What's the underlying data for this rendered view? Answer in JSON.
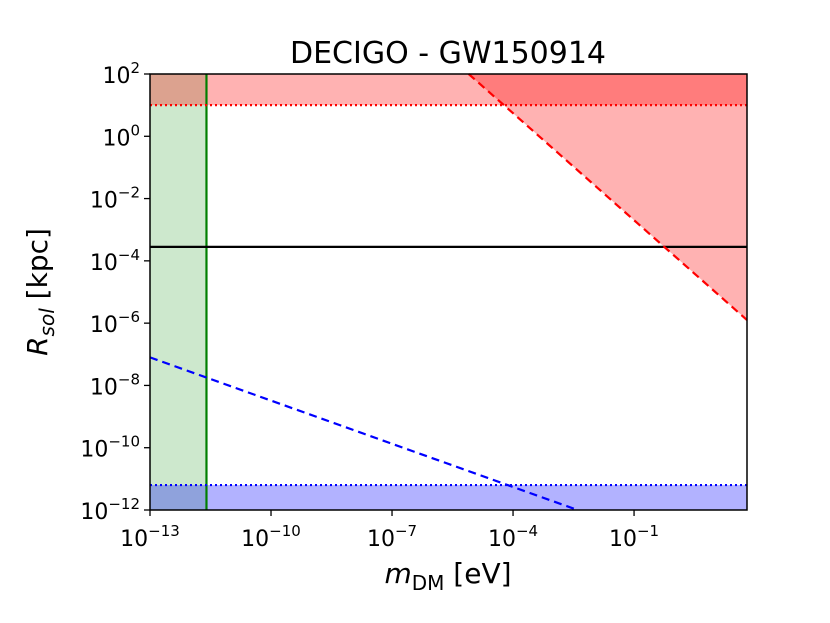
{
  "chart_data": {
    "type": "line",
    "title": "DECIGO - GW150914",
    "xlabel": {
      "main": "m",
      "sub": "DM",
      "unit": " [eV]"
    },
    "ylabel": {
      "main": "R",
      "sub": "sol",
      "unit": " [kpc]"
    },
    "xscale": "log",
    "yscale": "log",
    "xlim_exp": [
      -13,
      1.8
    ],
    "ylim_exp": [
      -12,
      2
    ],
    "x_ticks": [
      {
        "exp": -13,
        "base": "10",
        "sup": "−13"
      },
      {
        "exp": -10,
        "base": "10",
        "sup": "−10"
      },
      {
        "exp": -7,
        "base": "10",
        "sup": "−7"
      },
      {
        "exp": -4,
        "base": "10",
        "sup": "−4"
      },
      {
        "exp": -1,
        "base": "10",
        "sup": "−1"
      }
    ],
    "y_ticks": [
      {
        "exp": -12,
        "base": "10",
        "sup": "−12"
      },
      {
        "exp": -10,
        "base": "10",
        "sup": "−10"
      },
      {
        "exp": -8,
        "base": "10",
        "sup": "−8"
      },
      {
        "exp": -6,
        "base": "10",
        "sup": "−6"
      },
      {
        "exp": -4,
        "base": "10",
        "sup": "−4"
      },
      {
        "exp": -2,
        "base": "10",
        "sup": "−2"
      },
      {
        "exp": 0,
        "base": "10",
        "sup": "0"
      },
      {
        "exp": 2,
        "base": "10",
        "sup": "2"
      }
    ],
    "regions": [
      {
        "name": "green-excluded-region",
        "color": "#2ca02c",
        "opacity": 0.24,
        "x_exp": [
          -13,
          -11.6
        ],
        "y_exp": [
          -12,
          2
        ]
      },
      {
        "name": "red-top-band",
        "color": "#ff0000",
        "opacity": 0.3,
        "x_exp": [
          -13,
          1.8
        ],
        "y_exp": [
          1,
          2
        ]
      },
      {
        "name": "blue-bottom-band",
        "color": "#0000ff",
        "opacity": 0.3,
        "x_exp": [
          -13,
          1.8
        ],
        "y_exp": [
          -12,
          -11.2
        ]
      }
    ],
    "red_triangle": {
      "color": "#ff0000",
      "opacity": 0.3,
      "points_exp": [
        [
          -5.1,
          2
        ],
        [
          1.8,
          2
        ],
        [
          1.8,
          -5.9
        ]
      ]
    },
    "series": [
      {
        "name": "green-vertical-line",
        "style": "solid",
        "color": "#007f00",
        "x_exp": [
          -11.6,
          -11.6
        ],
        "y_exp": [
          -12,
          2
        ]
      },
      {
        "name": "black-horizontal-line",
        "style": "solid",
        "color": "#000000",
        "x_exp": [
          -13,
          1.8
        ],
        "y_exp": [
          -3.55,
          -3.55
        ]
      },
      {
        "name": "red-dotted-line",
        "style": "dotted",
        "color": "#ff0000",
        "x_exp": [
          -13,
          1.8
        ],
        "y_exp": [
          1,
          1
        ]
      },
      {
        "name": "blue-dotted-line",
        "style": "dotted",
        "color": "#0000ff",
        "x_exp": [
          -13,
          1.8
        ],
        "y_exp": [
          -11.2,
          -11.2
        ]
      },
      {
        "name": "red-dashed-line",
        "style": "dashed",
        "color": "#ff0000",
        "x_exp": [
          -5.1,
          1.8
        ],
        "y_exp": [
          2,
          -5.9
        ]
      },
      {
        "name": "blue-dashed-line",
        "style": "dashed",
        "color": "#0000ff",
        "x_exp": [
          -13,
          -2.4
        ],
        "y_exp": [
          -7.1,
          -12
        ]
      }
    ]
  }
}
